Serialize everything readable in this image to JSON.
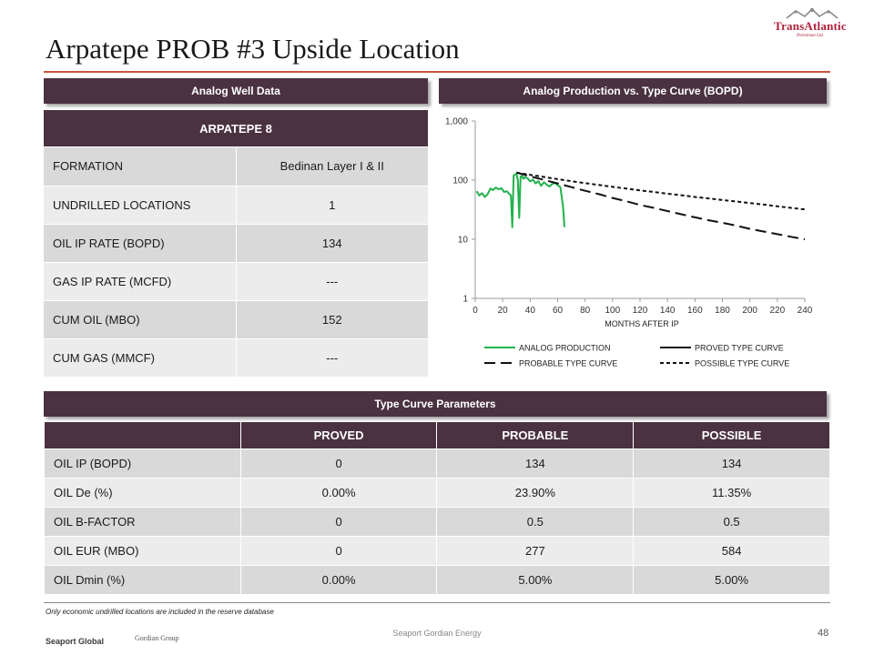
{
  "page": {
    "title": "Arpatepe PROB #3 Upside Location",
    "footnote": "Only economic undrilled locations are included in the reserve database",
    "footer_center": "Seaport Gordian Energy",
    "page_number": "48",
    "footer_logo_seaport": "Seaport Global",
    "footer_logo_gordian": "Gordian Group"
  },
  "logo": {
    "name": "TransAtlantic",
    "sub": "Petroleum Ltd."
  },
  "colors": {
    "banner": "#4a3240",
    "accent_rule": "#c8553d",
    "analog": "#22b14c",
    "logo": "#b0203a"
  },
  "well": {
    "banner": "Analog Well Data",
    "name": "ARPATEPE  8",
    "rows": [
      {
        "label": "FORMATION",
        "value": "Bedinan Layer I & II"
      },
      {
        "label": "UNDRILLED LOCATIONS",
        "value": "1"
      },
      {
        "label": "OIL IP RATE (BOPD)",
        "value": "134"
      },
      {
        "label": "GAS IP RATE (MCFD)",
        "value": "---"
      },
      {
        "label": "CUM OIL (MBO)",
        "value": "152"
      },
      {
        "label": "CUM GAS (MMCF)",
        "value": "---"
      }
    ]
  },
  "params": {
    "banner": "Type Curve Parameters",
    "headers": [
      "",
      "PROVED",
      "PROBABLE",
      "POSSIBLE"
    ],
    "rows": [
      {
        "label": "OIL IP (BOPD)",
        "values": [
          "0",
          "134",
          "134"
        ]
      },
      {
        "label": "OIL De (%)",
        "values": [
          "0.00%",
          "23.90%",
          "11.35%"
        ]
      },
      {
        "label": "OIL B-FACTOR",
        "values": [
          "0",
          "0.5",
          "0.5"
        ]
      },
      {
        "label": "OIL EUR (MBO)",
        "values": [
          "0",
          "277",
          "584"
        ]
      },
      {
        "label": "OIL Dmin (%)",
        "values": [
          "0.00%",
          "5.00%",
          "5.00%"
        ]
      }
    ]
  },
  "chart_data": {
    "type": "line",
    "banner": "Analog Production vs. Type Curve (BOPD)",
    "title": "Analog Production vs. Type Curve (BOPD)",
    "xlabel": "MONTHS  AFTER IP",
    "ylabel": "",
    "yscale": "log",
    "xlim": [
      0,
      240
    ],
    "ylim": [
      1,
      1000
    ],
    "xticks": [
      0,
      20,
      40,
      60,
      80,
      100,
      120,
      140,
      160,
      180,
      200,
      220,
      240
    ],
    "yticks": [
      1,
      10,
      100,
      1000
    ],
    "ytick_labels": [
      "1",
      "10",
      "100",
      "1,000"
    ],
    "legend_position": "bottom",
    "series": [
      {
        "name": "ANALOG PRODUCTION",
        "style": "solid-green",
        "x": [
          1,
          3,
          5,
          7,
          9,
          11,
          13,
          15,
          17,
          19,
          21,
          23,
          25,
          26,
          27,
          28,
          29,
          30,
          31,
          32,
          33,
          34,
          35,
          36,
          38,
          40,
          42,
          44,
          46,
          48,
          50,
          52,
          54,
          56,
          58,
          60,
          62,
          64,
          65
        ],
        "y": [
          65,
          55,
          60,
          52,
          58,
          72,
          68,
          75,
          70,
          73,
          63,
          65,
          58,
          55,
          16,
          120,
          125,
          128,
          100,
          23,
          115,
          118,
          105,
          112,
          108,
          95,
          102,
          88,
          96,
          80,
          92,
          84,
          78,
          86,
          90,
          82,
          76,
          35,
          16
        ]
      },
      {
        "name": "PROVED TYPE CURVE",
        "style": "solid-black",
        "x": [],
        "y": []
      },
      {
        "name": "PROBABLE TYPE CURVE",
        "style": "long-dash",
        "x": [
          30,
          40,
          50,
          60,
          70,
          80,
          90,
          100,
          110,
          120,
          130,
          140,
          150,
          160,
          170,
          180,
          190,
          200,
          210,
          220,
          230,
          240
        ],
        "y": [
          134,
          116,
          101,
          88,
          76,
          66,
          58,
          50,
          44,
          38,
          34,
          30,
          26.5,
          23.5,
          21,
          19,
          17,
          15,
          13.5,
          12.2,
          11,
          10
        ]
      },
      {
        "name": "POSSIBLE TYPE CURVE",
        "style": "short-dash",
        "x": [
          30,
          40,
          50,
          60,
          70,
          80,
          90,
          100,
          110,
          120,
          130,
          140,
          150,
          160,
          170,
          180,
          190,
          200,
          210,
          220,
          230,
          240
        ],
        "y": [
          134,
          123,
          113,
          104,
          96,
          89,
          83,
          77,
          72,
          67,
          63,
          59,
          55.5,
          52,
          49,
          46,
          43.5,
          41,
          38.5,
          36,
          34,
          32
        ]
      }
    ]
  }
}
